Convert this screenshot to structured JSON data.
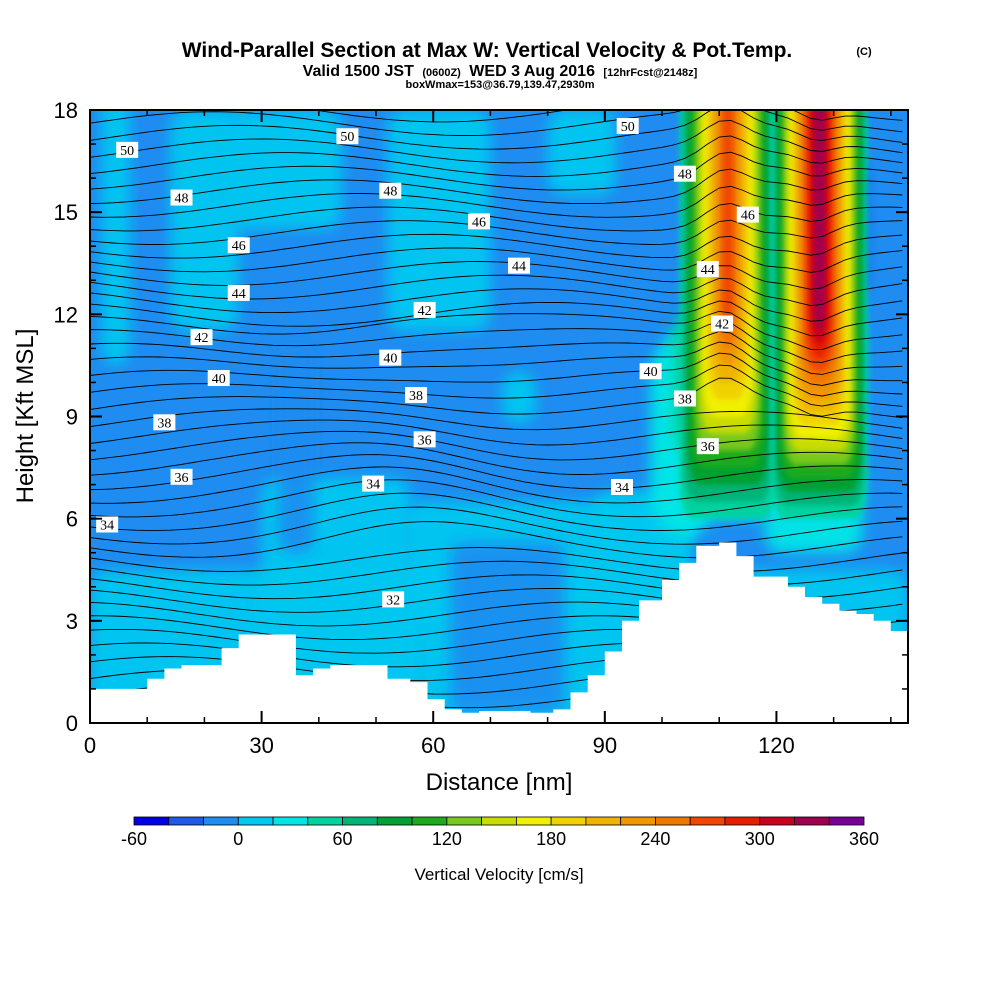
{
  "title": {
    "main": "Wind-Parallel Section at Max W: Vertical Velocity & Pot.Temp.",
    "copyright": "(C)",
    "valid_prefix": "Valid 1500 JST",
    "valid_utc": "(0600Z)",
    "valid_date": "WED 3 Aug 2016",
    "forecast": "[12hrFcst@2148z]",
    "box_info": "boxWmax=153@36.79,139.47,2930m"
  },
  "chart_data": {
    "type": "heatmap",
    "xlabel": "Distance [nm]",
    "ylabel": "Height [Kft MSL]",
    "xlim": [
      0,
      143
    ],
    "ylim": [
      0,
      18
    ],
    "x_ticks": [
      "0",
      "30",
      "60",
      "90",
      "120"
    ],
    "x_tick_values": [
      0,
      30,
      60,
      90,
      120
    ],
    "y_ticks": [
      "0",
      "3",
      "6",
      "9",
      "12",
      "15",
      "18"
    ],
    "y_tick_values": [
      0,
      3,
      6,
      9,
      12,
      15,
      18
    ],
    "colorbar": {
      "label": "Vertical Velocity [cm/s]",
      "min": -60,
      "max": 360,
      "step": 20,
      "tick_labels": [
        "-60",
        "0",
        "60",
        "120",
        "180",
        "240",
        "300",
        "360"
      ],
      "tick_values": [
        -60,
        0,
        60,
        120,
        180,
        240,
        300,
        360
      ],
      "colors": [
        "#0000e6",
        "#1e5ae6",
        "#1e8cf0",
        "#00c8f0",
        "#00e6e6",
        "#00d2a0",
        "#00b478",
        "#00a032",
        "#1eaa1e",
        "#78c81e",
        "#c8dc00",
        "#f0f000",
        "#f0d200",
        "#f0b400",
        "#f09600",
        "#f07800",
        "#f04600",
        "#e61e00",
        "#c8001e",
        "#a00050",
        "#780096"
      ]
    },
    "updrafts": [
      {
        "x_center": 111.5,
        "y_base": 6.0,
        "y_top": 18,
        "peak_cm_s": 260
      },
      {
        "x_center": 127.5,
        "y_base": 6.0,
        "y_top": 18,
        "peak_cm_s": 320
      }
    ],
    "terrain": {
      "x": [
        0,
        10,
        13,
        16,
        23,
        26,
        36,
        39,
        42,
        45,
        52,
        56,
        59,
        62,
        65,
        68,
        71,
        74,
        77,
        81,
        84,
        87,
        90,
        93,
        96,
        100,
        103,
        106,
        110,
        113,
        116,
        119,
        122,
        125,
        128,
        131,
        134,
        137,
        140,
        143
      ],
      "y": [
        1.0,
        1.3,
        1.6,
        1.7,
        2.2,
        2.6,
        1.4,
        1.6,
        1.7,
        1.7,
        1.3,
        1.2,
        0.7,
        0.4,
        0.3,
        0.35,
        0.35,
        0.35,
        0.3,
        0.4,
        0.9,
        1.4,
        2.1,
        3.0,
        3.6,
        4.2,
        4.7,
        5.2,
        5.3,
        4.9,
        4.3,
        4.3,
        4.0,
        3.7,
        3.5,
        3.3,
        3.2,
        3.0,
        2.7,
        2.7
      ]
    },
    "theta_labels": [
      {
        "text": "50",
        "x": 6.5,
        "y": 16.8
      },
      {
        "text": "48",
        "x": 16,
        "y": 15.4
      },
      {
        "text": "46",
        "x": 26,
        "y": 14.0
      },
      {
        "text": "44",
        "x": 26,
        "y": 12.6
      },
      {
        "text": "42",
        "x": 19.5,
        "y": 11.3
      },
      {
        "text": "40",
        "x": 22.5,
        "y": 10.1
      },
      {
        "text": "38",
        "x": 13,
        "y": 8.8
      },
      {
        "text": "36",
        "x": 16,
        "y": 7.2
      },
      {
        "text": "34",
        "x": 3,
        "y": 5.8
      },
      {
        "text": "50",
        "x": 45,
        "y": 17.2
      },
      {
        "text": "48",
        "x": 52.5,
        "y": 15.6
      },
      {
        "text": "46",
        "x": 68,
        "y": 14.7
      },
      {
        "text": "44",
        "x": 75,
        "y": 13.4
      },
      {
        "text": "42",
        "x": 58.5,
        "y": 12.1
      },
      {
        "text": "40",
        "x": 52.5,
        "y": 10.7
      },
      {
        "text": "38",
        "x": 57,
        "y": 9.6
      },
      {
        "text": "36",
        "x": 58.5,
        "y": 8.3
      },
      {
        "text": "34",
        "x": 49.5,
        "y": 7.0
      },
      {
        "text": "32",
        "x": 53,
        "y": 3.6
      },
      {
        "text": "50",
        "x": 94,
        "y": 17.5
      },
      {
        "text": "48",
        "x": 104,
        "y": 16.1
      },
      {
        "text": "46",
        "x": 115,
        "y": 14.9
      },
      {
        "text": "44",
        "x": 108,
        "y": 13.3
      },
      {
        "text": "42",
        "x": 110.5,
        "y": 11.7
      },
      {
        "text": "40",
        "x": 98,
        "y": 10.3
      },
      {
        "text": "38",
        "x": 104,
        "y": 9.5
      },
      {
        "text": "36",
        "x": 108,
        "y": 8.1
      },
      {
        "text": "34",
        "x": 93,
        "y": 6.9
      }
    ]
  }
}
